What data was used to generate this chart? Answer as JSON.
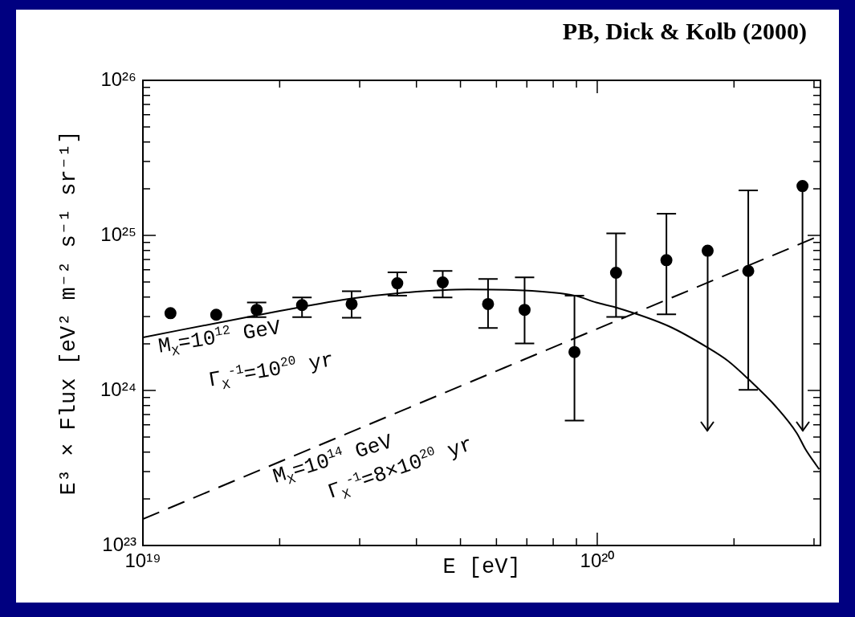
{
  "chart_data": {
    "type": "scatter",
    "title": "PB, Dick & Kolb (2000)",
    "xlabel": "E [eV]",
    "ylabel": "E³ × Flux [eV² m⁻² s⁻¹ sr⁻¹]",
    "log": "xy",
    "xlim": [
      1e+19,
      3.1e+20
    ],
    "ylim": [
      1e+23,
      1e+26
    ],
    "xticks": [
      {
        "value": 1e+19,
        "label": "10¹⁹"
      },
      {
        "value": 2e+19,
        "label": null
      },
      {
        "value": 3e+19,
        "label": null
      },
      {
        "value": 4e+19,
        "label": null
      },
      {
        "value": 5e+19,
        "label": null
      },
      {
        "value": 6e+19,
        "label": null
      },
      {
        "value": 7e+19,
        "label": null
      },
      {
        "value": 8e+19,
        "label": null
      },
      {
        "value": 9e+19,
        "label": null
      },
      {
        "value": 1e+20,
        "label": "10²⁰"
      },
      {
        "value": 2e+20,
        "label": null
      },
      {
        "value": 3e+20,
        "label": null
      }
    ],
    "yticks": [
      {
        "value": 1e+23,
        "label": "10²³"
      },
      {
        "value": 2e+23,
        "label": null
      },
      {
        "value": 3e+23,
        "label": null
      },
      {
        "value": 4e+23,
        "label": null
      },
      {
        "value": 5e+23,
        "label": null
      },
      {
        "value": 6e+23,
        "label": null
      },
      {
        "value": 7e+23,
        "label": null
      },
      {
        "value": 8e+23,
        "label": null
      },
      {
        "value": 9e+23,
        "label": null
      },
      {
        "value": 1e+24,
        "label": "10²⁴"
      },
      {
        "value": 2e+24,
        "label": null
      },
      {
        "value": 3e+24,
        "label": null
      },
      {
        "value": 4e+24,
        "label": null
      },
      {
        "value": 5e+24,
        "label": null
      },
      {
        "value": 6e+24,
        "label": null
      },
      {
        "value": 7e+24,
        "label": null
      },
      {
        "value": 8e+24,
        "label": null
      },
      {
        "value": 9e+24,
        "label": null
      },
      {
        "value": 1e+25,
        "label": "10²⁵"
      },
      {
        "value": 2e+25,
        "label": null
      },
      {
        "value": 3e+25,
        "label": null
      },
      {
        "value": 4e+25,
        "label": null
      },
      {
        "value": 5e+25,
        "label": null
      },
      {
        "value": 6e+25,
        "label": null
      },
      {
        "value": 7e+25,
        "label": null
      },
      {
        "value": 8e+25,
        "label": null
      },
      {
        "value": 9e+25,
        "label": null
      },
      {
        "value": 1e+26,
        "label": "10²⁶"
      }
    ],
    "series": [
      {
        "color": "#000000",
        "marker": "circle",
        "x": [
          1.15e+19,
          1.45e+19,
          1.78e+19,
          2.24e+19,
          2.88e+19,
          3.63e+19,
          4.57e+19,
          5.75e+19,
          6.92e+19,
          8.91e+19,
          1.1e+20,
          1.42e+20,
          1.75e+20,
          2.15e+20,
          2.83e+20
        ],
        "values": [
          3.15e+24,
          3.08e+24,
          3.31e+24,
          3.55e+24,
          3.61e+24,
          4.91e+24,
          4.98e+24,
          3.61e+24,
          3.31e+24,
          1.77e+24,
          5.74e+24,
          6.92e+24,
          7.96e+24,
          5.9e+24,
          2.08e+25
        ],
        "errors": [
          null,
          null,
          [
            2.97e+24,
            3.69e+24
          ],
          [
            2.97e+24,
            3.98e+24
          ],
          [
            2.94e+24,
            4.36e+24
          ],
          [
            4.09e+24,
            5.77e+24
          ],
          [
            3.98e+24,
            5.9e+24
          ],
          [
            2.53e+24,
            5.24e+24
          ],
          [
            2.01e+24,
            5.36e+24
          ],
          [
            6.4e+23,
            4.09e+24
          ],
          [
            2.98e+24,
            1.03e+25
          ],
          [
            3.1e+24,
            1.38e+25
          ],
          [
            5.5e+23,
            7.96e+24
          ],
          [
            1.01e+24,
            1.95e+25
          ],
          [
            5.5e+23,
            2.08e+25
          ]
        ]
      },
      {
        "type": "line",
        "color": "#000000",
        "marker": "none",
        "line_style": "solid",
        "x": [
          1e+19,
          1.76e+19,
          2.86e+19,
          3.65e+19,
          5.18e+19,
          6.87e+19,
          8.95e+19,
          9.95e+19,
          1.1e+20,
          1.44e+20,
          1.75e+20,
          1.94e+20,
          2.16e+20,
          2.47e+20,
          2.75e+20,
          2.87e+20,
          3.08e+20
        ],
        "values": [
          2.2e+24,
          3.03e+24,
          3.91e+24,
          4.24e+24,
          4.48e+24,
          4.42e+24,
          4.08e+24,
          3.69e+24,
          3.43e+24,
          2.59e+24,
          1.89e+24,
          1.55e+24,
          1.17e+24,
          7.9e+23,
          5.3e+23,
          4.2e+23,
          3.1e+23
        ]
      },
      {
        "type": "line",
        "color": "#000000",
        "marker": "none",
        "line_style": "dashed",
        "x": [
          1e+19,
          3.1e+20
        ],
        "values": [
          1.48e+23,
          1e+25
        ]
      }
    ],
    "annotations": [
      "M$_{X}$=10$^{12}$ GeV",
      "Γ$_{X}$$^{-1}$=10$^{20}$ yr",
      "M$_{X}$=10$^{14}$ GeV",
      "Γ$_{X}$$^{-1}$=8×10$^{20}$ yr"
    ]
  }
}
